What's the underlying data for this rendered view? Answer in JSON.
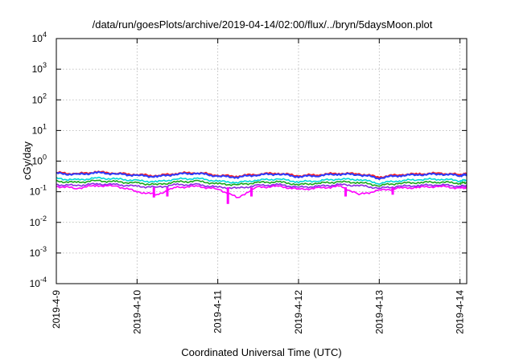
{
  "chart_data": {
    "type": "line",
    "title": "/data/run/goesPlots/archive/2019-04-14/02:00/flux/../bryn/5daysMoon.plot",
    "xlabel": "Coordinated Universal Time (UTC)",
    "ylabel": "cGy/day",
    "yscale": "log",
    "ylim": [
      0.0001,
      10000
    ],
    "xlim": [
      "2019-04-09T00:00",
      "2019-04-14T02:00"
    ],
    "grid": true,
    "legend": "none",
    "x_ticks": [
      "2019-4-9",
      "2019-4-10",
      "2019-4-11",
      "2019-4-12",
      "2019-4-13",
      "2019-4-14"
    ],
    "y_ticks": [
      {
        "base": "10",
        "exp": "-4",
        "value": 0.0001
      },
      {
        "base": "10",
        "exp": "-3",
        "value": 0.001
      },
      {
        "base": "10",
        "exp": "-2",
        "value": 0.01
      },
      {
        "base": "10",
        "exp": "-1",
        "value": 0.1
      },
      {
        "base": "10",
        "exp": "0",
        "value": 1
      },
      {
        "base": "10",
        "exp": "1",
        "value": 10
      },
      {
        "base": "10",
        "exp": "2",
        "value": 100
      },
      {
        "base": "10",
        "exp": "3",
        "value": 1000
      },
      {
        "base": "10",
        "exp": "4",
        "value": 10000
      }
    ],
    "x": [
      "2019-04-09T00:00",
      "2019-04-09T06:00",
      "2019-04-09T12:00",
      "2019-04-09T18:00",
      "2019-04-10T00:00",
      "2019-04-10T06:00",
      "2019-04-10T12:00",
      "2019-04-10T18:00",
      "2019-04-11T00:00",
      "2019-04-11T06:00",
      "2019-04-11T12:00",
      "2019-04-11T18:00",
      "2019-04-12T00:00",
      "2019-04-12T06:00",
      "2019-04-12T12:00",
      "2019-04-12T18:00",
      "2019-04-13T00:00",
      "2019-04-13T06:00",
      "2019-04-13T12:00",
      "2019-04-13T18:00",
      "2019-04-14T00:00",
      "2019-04-14T02:00"
    ],
    "series": [
      {
        "color": "#ff2020",
        "values": [
          0.42,
          0.38,
          0.44,
          0.4,
          0.36,
          0.33,
          0.4,
          0.42,
          0.34,
          0.32,
          0.38,
          0.4,
          0.33,
          0.36,
          0.4,
          0.38,
          0.3,
          0.36,
          0.38,
          0.4,
          0.36,
          0.38
        ]
      },
      {
        "color": "#2a3cff",
        "values": [
          0.4,
          0.36,
          0.42,
          0.38,
          0.34,
          0.31,
          0.38,
          0.4,
          0.32,
          0.3,
          0.36,
          0.38,
          0.31,
          0.34,
          0.38,
          0.36,
          0.28,
          0.34,
          0.36,
          0.38,
          0.34,
          0.36
        ]
      },
      {
        "color": "#00d8d8",
        "values": [
          0.27,
          0.24,
          0.28,
          0.26,
          0.23,
          0.21,
          0.26,
          0.27,
          0.22,
          0.2,
          0.24,
          0.26,
          0.21,
          0.23,
          0.26,
          0.25,
          0.19,
          0.23,
          0.25,
          0.26,
          0.23,
          0.24
        ]
      },
      {
        "color": "#1aa81a",
        "values": [
          0.22,
          0.2,
          0.23,
          0.21,
          0.19,
          0.17,
          0.21,
          0.22,
          0.18,
          0.17,
          0.2,
          0.21,
          0.17,
          0.19,
          0.21,
          0.2,
          0.16,
          0.19,
          0.2,
          0.21,
          0.19,
          0.2
        ]
      },
      {
        "color": "#8a2be2",
        "values": [
          0.17,
          0.16,
          0.18,
          0.17,
          0.15,
          0.14,
          0.17,
          0.17,
          0.14,
          0.13,
          0.16,
          0.17,
          0.14,
          0.15,
          0.17,
          0.16,
          0.13,
          0.15,
          0.16,
          0.17,
          0.15,
          0.16
        ]
      },
      {
        "color": "#ff00ff",
        "values": [
          0.15,
          0.13,
          0.16,
          0.15,
          0.1,
          0.08,
          0.14,
          0.15,
          0.12,
          0.06,
          0.14,
          0.15,
          0.12,
          0.13,
          0.15,
          0.08,
          0.11,
          0.13,
          0.14,
          0.15,
          0.13,
          0.14
        ]
      }
    ],
    "dips": [
      {
        "x": "2019-04-10T05:00",
        "min": 0.065
      },
      {
        "x": "2019-04-10T09:00",
        "min": 0.07
      },
      {
        "x": "2019-04-11T03:00",
        "min": 0.04
      },
      {
        "x": "2019-04-11T10:00",
        "min": 0.07
      },
      {
        "x": "2019-04-12T14:00",
        "min": 0.07
      },
      {
        "x": "2019-04-13T04:00",
        "min": 0.08
      }
    ]
  }
}
